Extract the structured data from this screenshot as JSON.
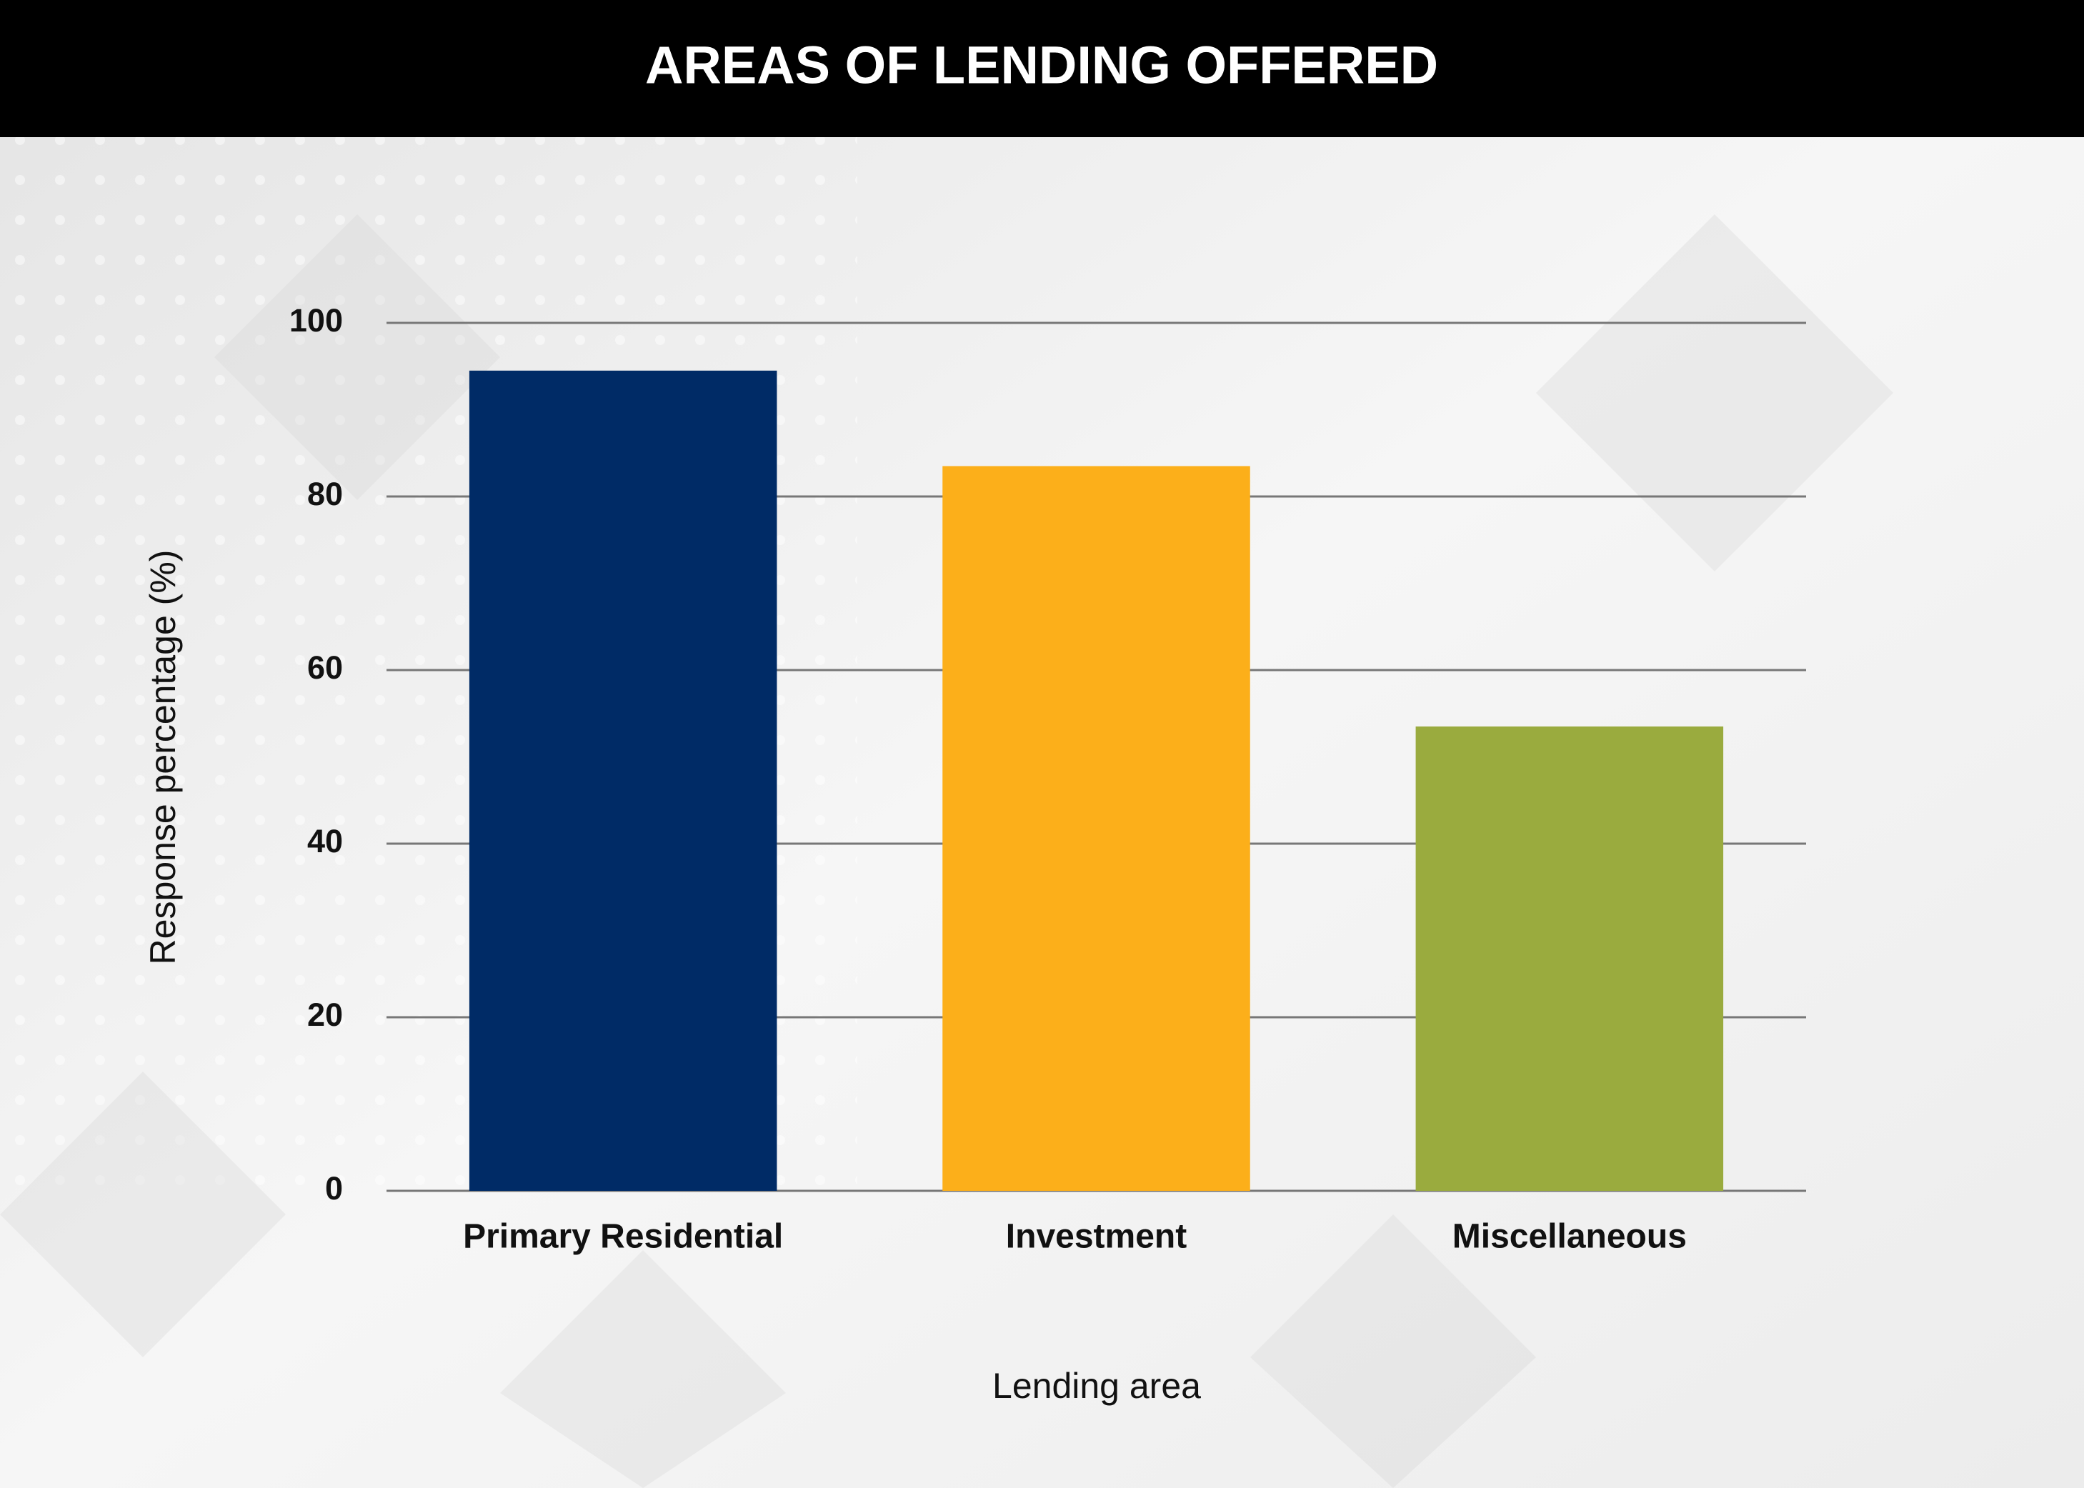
{
  "chart_data": {
    "type": "bar",
    "title": "AREAS OF LENDING OFFERED",
    "x_label": "Lending area",
    "y_label": "Response percentage (%)",
    "categories": [
      "Primary Residential",
      "Investment",
      "Miscellaneous"
    ],
    "values": [
      94.5,
      83.5,
      53.5
    ],
    "colors": [
      "#002b66",
      "#fcaf1a",
      "#9aab3e"
    ],
    "ylim": [
      0,
      100
    ],
    "yticks": [
      0,
      20,
      40,
      60,
      80,
      100
    ],
    "grid": true
  }
}
